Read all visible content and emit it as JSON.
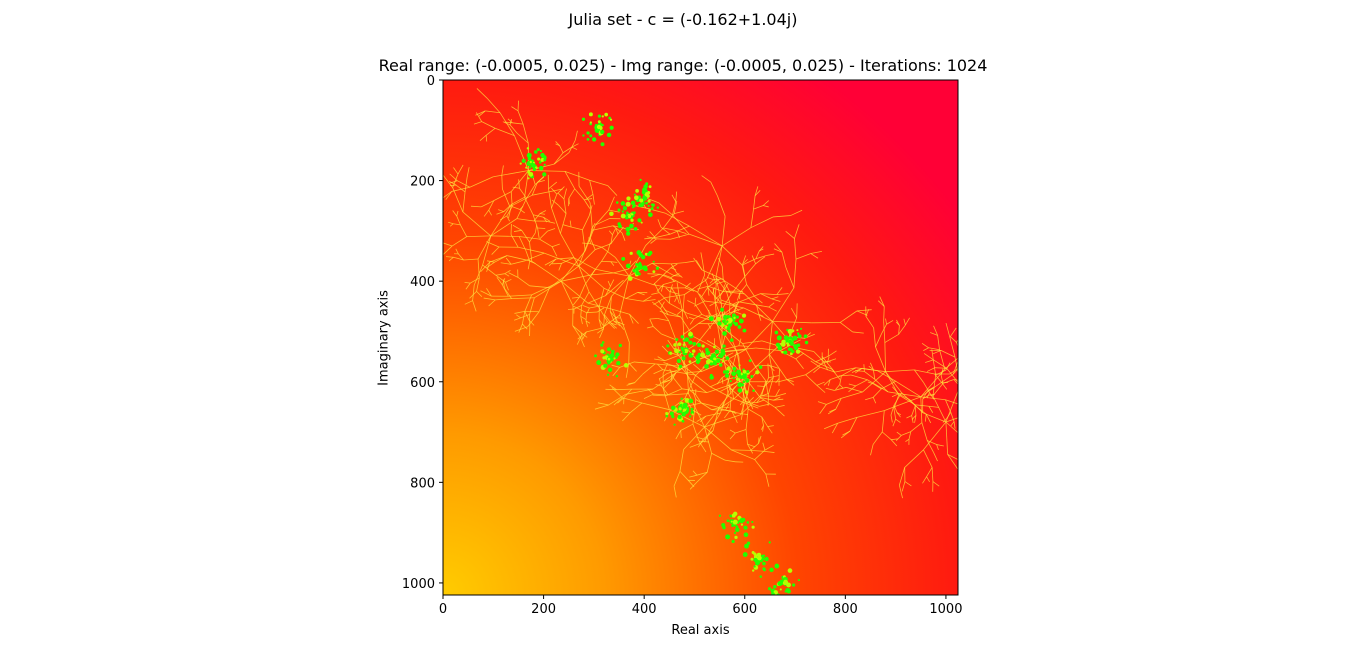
{
  "chart_data": {
    "type": "heatmap",
    "suptitle": "Julia set - c = (-0.162+1.04j)",
    "title": "Real range: (-0.0005, 0.025) - Img range: (-0.0005, 0.025) - Iterations: 1024",
    "xlabel": "Real axis",
    "ylabel": "Imaginary axis",
    "xlim": [
      0,
      1024
    ],
    "ylim": [
      1024,
      0
    ],
    "x_ticks": [
      0,
      200,
      400,
      600,
      800,
      1000
    ],
    "y_ticks": [
      0,
      200,
      400,
      600,
      800,
      1000
    ],
    "image_size": [
      1024,
      1024
    ],
    "colormap": {
      "low": "#ff0040",
      "mid": "#ff7f00",
      "high": "#00ff00"
    },
    "grid": false
  }
}
